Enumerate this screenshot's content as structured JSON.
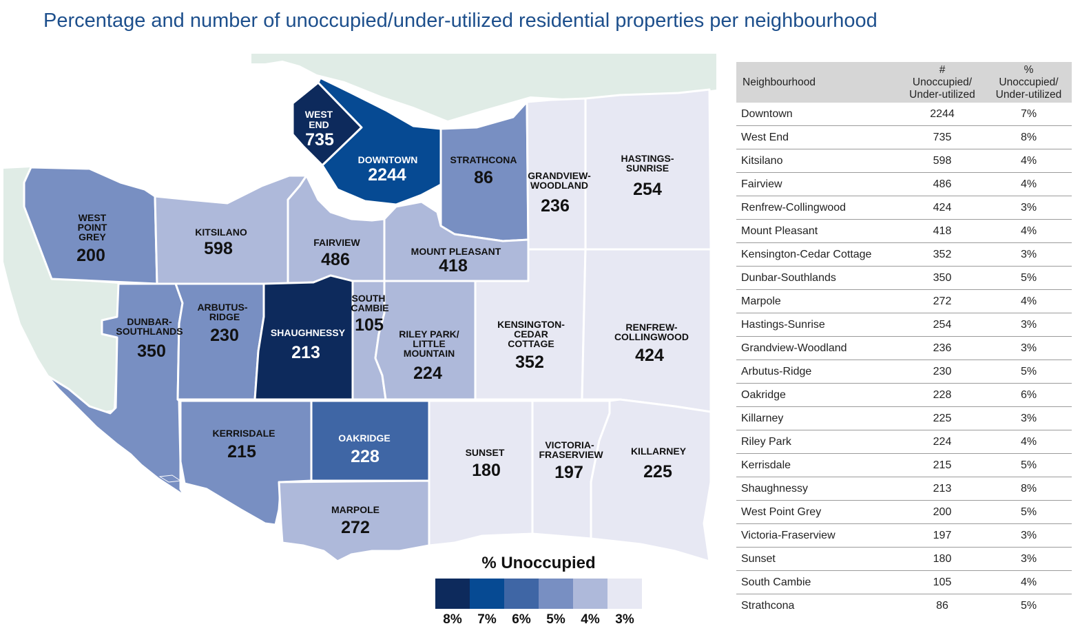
{
  "title": "Percentage and number of unoccupied/under-utilized residential properties per neighbourhood",
  "colors": {
    "8%": "#0d2a5c",
    "7%": "#064a93",
    "6%": "#3f66a5",
    "5%": "#788fc2",
    "4%": "#aeb9da",
    "3%": "#e7e8f3",
    "water": "#ffffff",
    "other_land": "#e0ece6"
  },
  "map_labels": {
    "west_end": {
      "name": [
        "WEST",
        "END"
      ],
      "count": "735"
    },
    "downtown": {
      "name": [
        "DOWNTOWN"
      ],
      "count": "2244"
    },
    "strathcona": {
      "name": [
        "STRATHCONA"
      ],
      "count": "86"
    },
    "grandview_woodland": {
      "name": [
        "GRANDVIEW-",
        "WOODLAND"
      ],
      "count": "236"
    },
    "hastings_sunrise": {
      "name": [
        "HASTINGS-",
        "SUNRISE"
      ],
      "count": "254"
    },
    "west_point_grey": {
      "name": [
        "WEST",
        "POINT",
        "GREY"
      ],
      "count": "200"
    },
    "kitsilano": {
      "name": [
        "KITSILANO"
      ],
      "count": "598"
    },
    "fairview": {
      "name": [
        "FAIRVIEW"
      ],
      "count": "486"
    },
    "mount_pleasant": {
      "name": [
        "MOUNT PLEASANT"
      ],
      "count": "418"
    },
    "dunbar_southlands": {
      "name": [
        "DUNBAR-",
        "SOUTHLANDS"
      ],
      "count": "350"
    },
    "arbutus_ridge": {
      "name": [
        "ARBUTUS-",
        "RIDGE"
      ],
      "count": "230"
    },
    "shaughnessy": {
      "name": [
        "SHAUGHNESSY"
      ],
      "count": "213"
    },
    "south_cambie": {
      "name": [
        "SOUTH",
        "CAMBIE"
      ],
      "count": "105"
    },
    "riley_park": {
      "name": [
        "RILEY PARK/",
        "LITTLE",
        "MOUNTAIN"
      ],
      "count": "224"
    },
    "kensington_cedar_cottage": {
      "name": [
        "KENSINGTON-",
        "CEDAR",
        "COTTAGE"
      ],
      "count": "352"
    },
    "renfrew_collingwood": {
      "name": [
        "RENFREW-",
        "COLLINGWOOD"
      ],
      "count": "424"
    },
    "kerrisdale": {
      "name": [
        "KERRISDALE"
      ],
      "count": "215"
    },
    "oakridge": {
      "name": [
        "OAKRIDGE"
      ],
      "count": "228"
    },
    "sunset": {
      "name": [
        "SUNSET"
      ],
      "count": "180"
    },
    "victoria_fraserview": {
      "name": [
        "VICTORIA-",
        "FRASERVIEW"
      ],
      "count": "197"
    },
    "killarney": {
      "name": [
        "KILLARNEY"
      ],
      "count": "225"
    },
    "marpole": {
      "name": [
        "MARPOLE"
      ],
      "count": "272"
    }
  },
  "legend": {
    "title": "% Unoccupied",
    "items": [
      {
        "label": "8%",
        "color": "#0d2a5c"
      },
      {
        "label": "7%",
        "color": "#064a93"
      },
      {
        "label": "6%",
        "color": "#3f66a5"
      },
      {
        "label": "5%",
        "color": "#788fc2"
      },
      {
        "label": "4%",
        "color": "#aeb9da"
      },
      {
        "label": "3%",
        "color": "#e7e8f3"
      }
    ]
  },
  "table": {
    "headers": {
      "neighbourhood": "Neighbourhood",
      "count_lines": [
        "#",
        "Unoccupied/",
        "Under-utilized"
      ],
      "pct_lines": [
        "%",
        "Unoccupied/",
        "Under-utilized"
      ]
    },
    "rows": [
      {
        "name": "Downtown",
        "count": "2244",
        "pct": "7%"
      },
      {
        "name": "West End",
        "count": "735",
        "pct": "8%"
      },
      {
        "name": "Kitsilano",
        "count": "598",
        "pct": "4%"
      },
      {
        "name": "Fairview",
        "count": "486",
        "pct": "4%"
      },
      {
        "name": "Renfrew-Collingwood",
        "count": "424",
        "pct": "3%"
      },
      {
        "name": "Mount Pleasant",
        "count": "418",
        "pct": "4%"
      },
      {
        "name": "Kensington-Cedar Cottage",
        "count": "352",
        "pct": "3%"
      },
      {
        "name": "Dunbar-Southlands",
        "count": "350",
        "pct": "5%"
      },
      {
        "name": "Marpole",
        "count": "272",
        "pct": "4%"
      },
      {
        "name": "Hastings-Sunrise",
        "count": "254",
        "pct": "3%"
      },
      {
        "name": "Grandview-Woodland",
        "count": "236",
        "pct": "3%"
      },
      {
        "name": "Arbutus-Ridge",
        "count": "230",
        "pct": "5%"
      },
      {
        "name": "Oakridge",
        "count": "228",
        "pct": "6%"
      },
      {
        "name": "Killarney",
        "count": "225",
        "pct": "3%"
      },
      {
        "name": "Riley Park",
        "count": "224",
        "pct": "4%"
      },
      {
        "name": "Kerrisdale",
        "count": "215",
        "pct": "5%"
      },
      {
        "name": "Shaughnessy",
        "count": "213",
        "pct": "8%"
      },
      {
        "name": "West Point Grey",
        "count": "200",
        "pct": "5%"
      },
      {
        "name": "Victoria-Fraserview",
        "count": "197",
        "pct": "3%"
      },
      {
        "name": "Sunset",
        "count": "180",
        "pct": "3%"
      },
      {
        "name": "South Cambie",
        "count": "105",
        "pct": "4%"
      },
      {
        "name": "Strathcona",
        "count": "86",
        "pct": "5%"
      }
    ]
  }
}
